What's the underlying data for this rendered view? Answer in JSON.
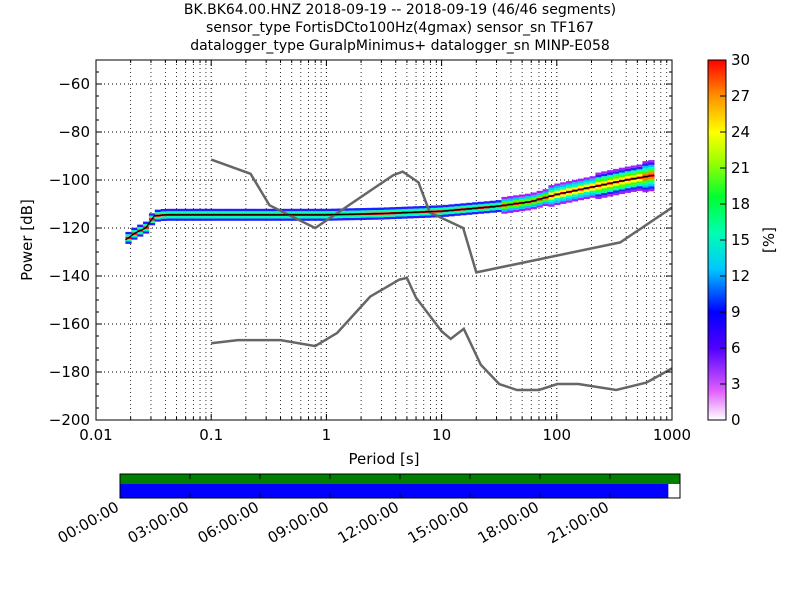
{
  "title": {
    "line1": "BK.BK64.00.HNZ   2018-09-19 -- 2018-09-19  (46/46 segments)",
    "line2": "sensor_type FortisDCto100Hz(4gmax) sensor_sn TF167",
    "line3": "datalogger_type GuralpMinimus+ datalogger_sn MINP-E058"
  },
  "chart_data": {
    "type": "heatmap",
    "xlabel": "Period [s]",
    "ylabel": "Power [dB]",
    "xscale": "log",
    "xlim": [
      0.01,
      1000
    ],
    "ylim": [
      -200,
      -50
    ],
    "x_ticks": [
      0.01,
      0.1,
      1,
      10,
      100,
      1000
    ],
    "x_tick_labels": [
      "0.01",
      "0.1",
      "1",
      "10",
      "100",
      "1000"
    ],
    "y_ticks": [
      -200,
      -180,
      -160,
      -140,
      -120,
      -100,
      -80,
      -60
    ],
    "y_tick_labels": [
      "−200",
      "−180",
      "−160",
      "−140",
      "−120",
      "−100",
      "−80",
      "−60"
    ],
    "grid": true,
    "colorbar": {
      "label": "[%]",
      "range": [
        0,
        30
      ],
      "ticks": [
        0,
        3,
        6,
        9,
        12,
        15,
        18,
        21,
        24,
        27,
        30
      ]
    },
    "noise_models": [
      {
        "points": [
          [
            0.1,
            -91.5
          ],
          [
            0.22,
            -97.4
          ],
          [
            0.32,
            -110.5
          ],
          [
            0.8,
            -120
          ],
          [
            3.8,
            -98
          ],
          [
            4.6,
            -96.5
          ],
          [
            6.3,
            -101
          ],
          [
            7.9,
            -113.5
          ],
          [
            15.4,
            -120
          ],
          [
            20,
            -138.5
          ],
          [
            354.8,
            -126
          ],
          [
            1000,
            -111.5
          ]
        ]
      },
      {
        "points": [
          [
            0.1,
            -168
          ],
          [
            0.17,
            -166.7
          ],
          [
            0.4,
            -166.7
          ],
          [
            0.8,
            -169.2
          ],
          [
            1.24,
            -163.7
          ],
          [
            2.4,
            -148.6
          ],
          [
            4.3,
            -141.5
          ],
          [
            5,
            -140.8
          ],
          [
            6,
            -149
          ],
          [
            10,
            -163
          ],
          [
            12,
            -166.2
          ],
          [
            15.6,
            -162
          ],
          [
            21.9,
            -177
          ],
          [
            31.6,
            -185
          ],
          [
            45,
            -187.5
          ],
          [
            70,
            -187.5
          ],
          [
            101,
            -185
          ],
          [
            154,
            -185
          ],
          [
            328,
            -187.5
          ],
          [
            600,
            -184.4
          ],
          [
            1000,
            -178.5
          ]
        ]
      }
    ],
    "mode_curve": [
      [
        0.018,
        -125
      ],
      [
        0.022,
        -122
      ],
      [
        0.027,
        -120
      ],
      [
        0.032,
        -115
      ],
      [
        0.04,
        -114.5
      ],
      [
        1,
        -114.5
      ],
      [
        3,
        -114
      ],
      [
        10,
        -113
      ],
      [
        30,
        -111
      ],
      [
        60,
        -109
      ],
      [
        100,
        -106
      ],
      [
        200,
        -103
      ],
      [
        400,
        -100
      ],
      [
        700,
        -98
      ]
    ],
    "time_axis": {
      "labels": [
        "00:00:00",
        "03:00:00",
        "06:00:00",
        "09:00:00",
        "12:00:00",
        "15:00:00",
        "18:00:00",
        "21:00:00"
      ],
      "data_coverage": [
        0,
        24
      ],
      "used_coverage": [
        0,
        23.5
      ],
      "data_color": "#007f00",
      "used_color": "#0000ff"
    }
  }
}
